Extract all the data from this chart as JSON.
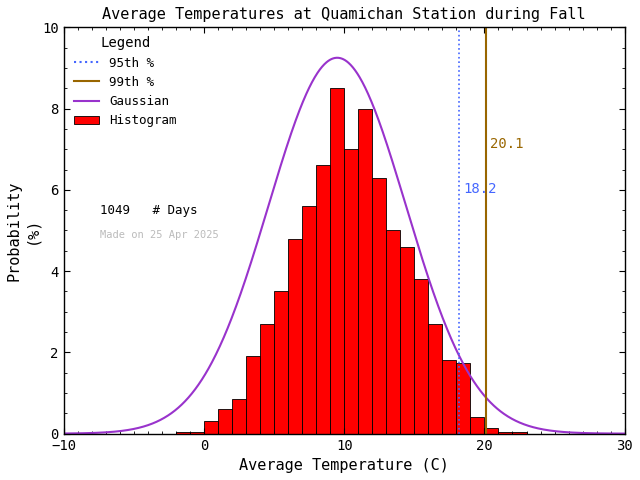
{
  "title": "Average Temperatures at Quamichan Station during Fall",
  "xlabel": "Average Temperature (C)",
  "ylabel": "Probability\n(%)",
  "xlim": [
    -10,
    30
  ],
  "ylim": [
    0,
    10
  ],
  "n_days": 1049,
  "percentile_95": 18.2,
  "percentile_99": 20.1,
  "bar_color": "#ff0000",
  "bar_edge_color": "#000000",
  "gaussian_color": "#9933cc",
  "p95_color": "#4466ff",
  "p99_color": "#996600",
  "background_color": "#ffffff",
  "date_label": "Made on 25 Apr 2025",
  "gauss_mean": 9.5,
  "gauss_std": 4.9,
  "gauss_peak": 9.25,
  "bar_bins": [
    -10,
    -9,
    -8,
    -7,
    -6,
    -5,
    -4,
    -3,
    -2,
    -1,
    0,
    1,
    2,
    3,
    4,
    5,
    6,
    7,
    8,
    9,
    10,
    11,
    12,
    13,
    14,
    15,
    16,
    17,
    18,
    19,
    20,
    21,
    22,
    23,
    24,
    25,
    26,
    27,
    28,
    29
  ],
  "bar_heights": [
    0,
    0,
    0,
    0,
    0,
    0,
    0,
    0,
    0.05,
    0.05,
    0.3,
    0.6,
    0.85,
    1.9,
    2.7,
    3.5,
    4.8,
    5.6,
    6.6,
    8.5,
    7.0,
    8.0,
    6.3,
    5.0,
    4.6,
    3.8,
    2.7,
    1.8,
    1.75,
    0.4,
    0.15,
    0.05,
    0.05,
    0,
    0,
    0,
    0,
    0,
    0,
    0
  ]
}
